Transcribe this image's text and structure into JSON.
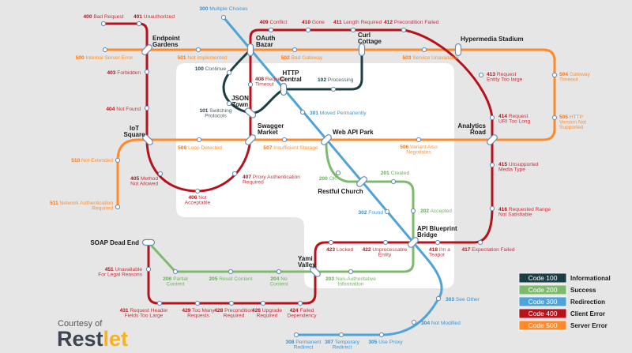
{
  "lines": [
    {
      "code": "100",
      "color": "#1d3d45",
      "text_color": "#4a5e63",
      "stops": [
        {
          "code": "100",
          "text": [
            "Continue"
          ]
        },
        {
          "code": "101",
          "text": [
            "Switching",
            "Protocols"
          ]
        },
        {
          "code": "102",
          "text": [
            "Processing"
          ]
        }
      ]
    },
    {
      "code": "200",
      "color": "#7dba6e",
      "text_color": "#74b266",
      "stops": [
        {
          "code": "200",
          "text": [
            "OK"
          ]
        },
        {
          "code": "201",
          "text": [
            "Created"
          ]
        },
        {
          "code": "202",
          "text": [
            "Accepted"
          ]
        },
        {
          "code": "203",
          "text": [
            "Non-Authoritative",
            "Information"
          ]
        },
        {
          "code": "204",
          "text": [
            "No",
            "Content"
          ]
        },
        {
          "code": "205",
          "text": [
            "Reset Content"
          ]
        },
        {
          "code": "206",
          "text": [
            "Partial",
            "Content"
          ]
        }
      ]
    },
    {
      "code": "300",
      "color": "#4ea3d8",
      "text_color": "#3d97d3",
      "stops": [
        {
          "code": "300",
          "text": [
            "Multiple Choices"
          ]
        },
        {
          "code": "301",
          "text": [
            "Moved Permanently"
          ]
        },
        {
          "code": "302",
          "text": [
            "Found"
          ]
        },
        {
          "code": "303",
          "text": [
            "See Other"
          ]
        },
        {
          "code": "304",
          "text": [
            "Not Modified"
          ]
        },
        {
          "code": "305",
          "text": [
            "Use Proxy"
          ]
        },
        {
          "code": "307",
          "text": [
            "Temporary",
            "Redirect"
          ]
        },
        {
          "code": "308",
          "text": [
            "Permanent",
            "Redirect"
          ]
        }
      ]
    },
    {
      "code": "400",
      "color": "#b5121b",
      "text_color": "#c8323c",
      "stops": [
        {
          "code": "400",
          "text": [
            "Bad Request"
          ]
        },
        {
          "code": "401",
          "text": [
            "Unauthorized"
          ]
        },
        {
          "code": "403",
          "text": [
            "Forbidden"
          ]
        },
        {
          "code": "404",
          "text": [
            "Not Found"
          ]
        },
        {
          "code": "405",
          "text": [
            "Method",
            "Not Allowed"
          ]
        },
        {
          "code": "406",
          "text": [
            "Not",
            "Acceptable"
          ]
        },
        {
          "code": "407",
          "text": [
            "Proxy Authentication",
            "Required"
          ]
        },
        {
          "code": "408",
          "text": [
            "Request",
            "Timeout"
          ]
        },
        {
          "code": "409",
          "text": [
            "Conflict"
          ]
        },
        {
          "code": "410",
          "text": [
            "Gone"
          ]
        },
        {
          "code": "411",
          "text": [
            "Length Required"
          ]
        },
        {
          "code": "412",
          "text": [
            "Precondition Failed"
          ]
        },
        {
          "code": "413",
          "text": [
            "Request",
            "Entity Too large"
          ]
        },
        {
          "code": "414",
          "text": [
            "Request",
            "URI Too Long"
          ]
        },
        {
          "code": "415",
          "text": [
            "Unsupported",
            "Media Type"
          ]
        },
        {
          "code": "416",
          "text": [
            "Requested Range",
            "Not Satisfiable"
          ]
        },
        {
          "code": "417",
          "text": [
            "Expectation Failed"
          ]
        },
        {
          "code": "418",
          "text": [
            "I'm a",
            "Teapot"
          ]
        },
        {
          "code": "422",
          "text": [
            "Unprocessable",
            "Entity"
          ]
        },
        {
          "code": "423",
          "text": [
            "Locked"
          ]
        },
        {
          "code": "424",
          "text": [
            "Failed",
            "Dependency"
          ]
        },
        {
          "code": "426",
          "text": [
            "Upgrade",
            "Required"
          ]
        },
        {
          "code": "428",
          "text": [
            "Precondition",
            "Required"
          ]
        },
        {
          "code": "429",
          "text": [
            "Too Many",
            "Requests"
          ]
        },
        {
          "code": "431",
          "text": [
            "Request Header",
            "Fields Too Large"
          ]
        },
        {
          "code": "451",
          "text": [
            "Unavailable",
            "For Legal Reasons"
          ]
        }
      ]
    },
    {
      "code": "500",
      "color": "#ff8a2b",
      "text_color": "#f8913a",
      "stops": [
        {
          "code": "500",
          "text": [
            "Internal Server Error"
          ]
        },
        {
          "code": "501",
          "text": [
            "Not Implemented"
          ]
        },
        {
          "code": "502",
          "text": [
            "Bad Gateway"
          ]
        },
        {
          "code": "503",
          "text": [
            "Service Unavailable"
          ]
        },
        {
          "code": "504",
          "text": [
            "Gateway",
            "Timeout"
          ]
        },
        {
          "code": "505",
          "text": [
            "HTTP",
            "Version Not",
            "Supported"
          ]
        },
        {
          "code": "506",
          "text": [
            "Variant Also",
            "Negotiates"
          ]
        },
        {
          "code": "507",
          "text": [
            "Insufficient Storage"
          ]
        },
        {
          "code": "508",
          "text": [
            "Loop Detected"
          ]
        },
        {
          "code": "510",
          "text": [
            "Not Extended"
          ]
        },
        {
          "code": "511",
          "text": [
            "Network Authentication",
            "Required"
          ]
        }
      ]
    }
  ],
  "stations": [
    {
      "id": "endpoint-gardens",
      "name": [
        "Endpoint",
        "Gardens"
      ]
    },
    {
      "id": "oauth-bazar",
      "name": [
        "OAuth",
        "Bazar"
      ]
    },
    {
      "id": "curl-cottage",
      "name": [
        "Curl",
        "Cottage"
      ]
    },
    {
      "id": "hypermedia-stadium",
      "name": [
        "Hypermedia Stadium"
      ]
    },
    {
      "id": "http-central",
      "name": [
        "HTTP",
        "Central"
      ]
    },
    {
      "id": "json-town",
      "name": [
        "JSON",
        "Town"
      ]
    },
    {
      "id": "swagger-market",
      "name": [
        "Swagger",
        "Market"
      ]
    },
    {
      "id": "iot-square",
      "name": [
        "IoT",
        "Square"
      ]
    },
    {
      "id": "web-api-park",
      "name": [
        "Web API Park"
      ]
    },
    {
      "id": "analytics-road",
      "name": [
        "Analytics",
        "Road"
      ]
    },
    {
      "id": "restful-church",
      "name": [
        "Restful Church"
      ]
    },
    {
      "id": "api-blueprint-bridge",
      "name": [
        "API Blueprint",
        "Bridge"
      ]
    },
    {
      "id": "yami-valley",
      "name": [
        "Yami",
        "Valley"
      ]
    },
    {
      "id": "soap-dead-end",
      "name": [
        "SOAP Dead End"
      ]
    }
  ],
  "legend": [
    {
      "box": "Code 100",
      "label": "Informational",
      "color": "#1d3d45"
    },
    {
      "box": "Code 200",
      "label": "Success",
      "color": "#7dba6e"
    },
    {
      "box": "Code 300",
      "label": "Redirection",
      "color": "#4ea3d8"
    },
    {
      "box": "Code 400",
      "label": "Client Error",
      "color": "#b5121b"
    },
    {
      "box": "Code 500",
      "label": "Server Error",
      "color": "#ff8a2b"
    }
  ],
  "credit": {
    "courtesy": "Courtesy of",
    "logo_part1": "Rest",
    "logo_part2": "let",
    "logo_color1": "#3c4550",
    "logo_color2": "#f9b31a"
  }
}
